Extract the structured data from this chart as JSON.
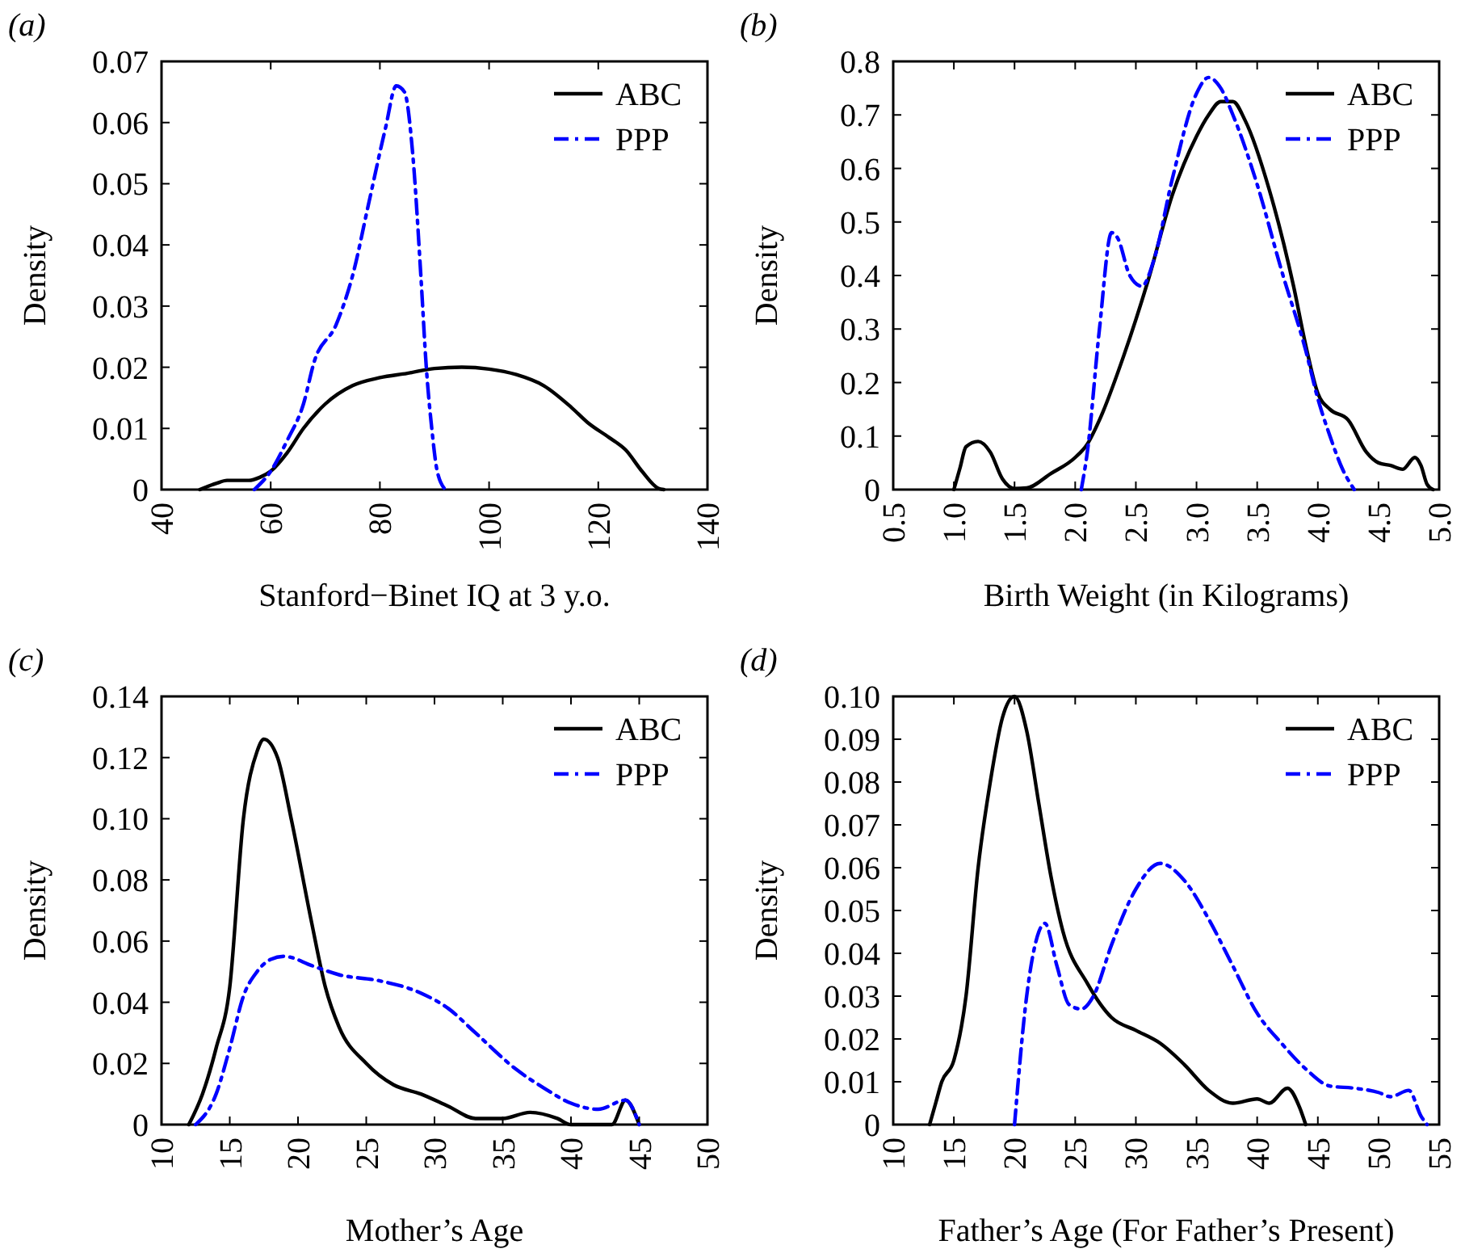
{
  "chart_data": [
    {
      "type": "line",
      "title": "(a)",
      "xlabel": "Stanford−Binet IQ at 3 y.o.",
      "ylabel": "Density",
      "xlim": [
        40,
        140
      ],
      "xticks": [
        40,
        60,
        80,
        100,
        120,
        140
      ],
      "ylim": [
        0,
        0.07
      ],
      "yticks": [
        0,
        0.01,
        0.02,
        0.03,
        0.04,
        0.05,
        0.06,
        0.07
      ],
      "legend": "top right",
      "grid": false,
      "series": [
        {
          "name": "ABC",
          "color": "#000000",
          "line_style": "solid",
          "x": [
            47,
            50,
            52,
            56,
            58,
            60,
            63,
            66,
            70,
            75,
            80,
            85,
            90,
            95,
            100,
            105,
            110,
            115,
            118,
            122,
            125,
            128,
            131,
            132
          ],
          "values": [
            0,
            0.001,
            0.0015,
            0.0015,
            0.002,
            0.003,
            0.006,
            0.01,
            0.014,
            0.017,
            0.0183,
            0.019,
            0.0198,
            0.02,
            0.0197,
            0.0188,
            0.017,
            0.0135,
            0.011,
            0.0085,
            0.0065,
            0.003,
            0.0002,
            0
          ]
        },
        {
          "name": "PPP",
          "color": "#0000ff",
          "line_style": "dashed",
          "x": [
            57,
            60,
            63,
            66,
            68,
            72,
            75,
            78,
            81,
            83,
            84.5,
            86,
            87.5,
            88.5,
            89.5,
            90.5,
            92
          ],
          "values": [
            0,
            0.003,
            0.008,
            0.014,
            0.021,
            0.027,
            0.035,
            0.047,
            0.059,
            0.066,
            0.065,
            0.055,
            0.035,
            0.02,
            0.01,
            0.003,
            0
          ]
        }
      ]
    },
    {
      "type": "line",
      "title": "(b)",
      "xlabel": "Birth Weight (in Kilograms)",
      "ylabel": "Density",
      "xlim": [
        0.5,
        5
      ],
      "xticks": [
        0.5,
        {
          "value": 1,
          "label": "1.0"
        },
        1.5,
        {
          "value": 2,
          "label": "2.0"
        },
        2.5,
        {
          "value": 3,
          "label": "3.0"
        },
        3.5,
        {
          "value": 4,
          "label": "4.0"
        },
        4.5,
        {
          "value": 5,
          "label": "5.0"
        }
      ],
      "ylim": [
        0,
        0.8
      ],
      "yticks": [
        0,
        0.1,
        0.2,
        0.3,
        0.4,
        0.5,
        0.6,
        0.7,
        0.8
      ],
      "legend": "top right",
      "grid": false,
      "series": [
        {
          "name": "ABC",
          "color": "#000000",
          "line_style": "solid",
          "x": [
            1.0,
            1.05,
            1.1,
            1.2,
            1.3,
            1.4,
            1.5,
            1.6,
            1.8,
            2.0,
            2.1,
            2.2,
            2.4,
            2.6,
            2.8,
            3.0,
            3.1,
            3.2,
            3.3,
            3.4,
            3.6,
            3.8,
            3.9,
            4.0,
            4.1,
            4.25,
            4.4,
            4.5,
            4.6,
            4.7,
            4.8,
            4.85,
            4.9,
            4.95
          ],
          "values": [
            0,
            0.04,
            0.08,
            0.09,
            0.07,
            0.02,
            0.002,
            0.003,
            0.03,
            0.06,
            0.085,
            0.13,
            0.25,
            0.39,
            0.55,
            0.66,
            0.7,
            0.725,
            0.725,
            0.69,
            0.56,
            0.38,
            0.27,
            0.18,
            0.15,
            0.13,
            0.07,
            0.05,
            0.045,
            0.038,
            0.06,
            0.045,
            0.01,
            0
          ]
        },
        {
          "name": "PPP",
          "color": "#0000ff",
          "line_style": "dashed",
          "x": [
            2.05,
            2.1,
            2.2,
            2.3,
            2.35,
            2.45,
            2.55,
            2.65,
            2.8,
            3.0,
            3.1,
            3.2,
            3.3,
            3.5,
            3.7,
            3.9,
            4.0,
            4.1,
            4.2,
            4.3
          ],
          "values": [
            0,
            0.07,
            0.3,
            0.48,
            0.47,
            0.4,
            0.38,
            0.43,
            0.58,
            0.74,
            0.77,
            0.75,
            0.7,
            0.57,
            0.41,
            0.26,
            0.17,
            0.1,
            0.04,
            0
          ]
        }
      ]
    },
    {
      "type": "line",
      "title": "(c)",
      "xlabel": "Mother’s Age",
      "ylabel": "Density",
      "xlim": [
        10,
        50
      ],
      "xticks": [
        10,
        15,
        20,
        25,
        30,
        35,
        40,
        45,
        50
      ],
      "ylim": [
        0,
        0.14
      ],
      "yticks": [
        0,
        0.02,
        0.04,
        0.06,
        0.08,
        {
          "value": 0.1,
          "label": "0.10"
        },
        0.12,
        0.14
      ],
      "legend": "top right",
      "grid": false,
      "series": [
        {
          "name": "ABC",
          "color": "#000000",
          "line_style": "solid",
          "x": [
            12,
            13,
            14,
            15,
            16,
            17,
            17.5,
            18.5,
            19.5,
            21,
            22,
            23,
            25,
            27,
            29,
            31,
            33,
            35,
            37,
            39,
            40,
            43,
            44,
            45
          ],
          "values": [
            0,
            0.01,
            0.025,
            0.045,
            0.1,
            0.122,
            0.126,
            0.12,
            0.1,
            0.066,
            0.045,
            0.032,
            0.02,
            0.013,
            0.01,
            0.006,
            0.002,
            0.002,
            0.004,
            0.002,
            0,
            0,
            0.008,
            0
          ]
        },
        {
          "name": "PPP",
          "color": "#0000ff",
          "line_style": "dashed",
          "x": [
            12.5,
            14,
            15,
            16,
            17,
            18,
            19,
            21,
            23,
            26,
            29,
            31,
            33,
            36,
            38,
            40,
            42,
            44,
            45
          ],
          "values": [
            0,
            0.01,
            0.025,
            0.042,
            0.05,
            0.054,
            0.055,
            0.052,
            0.049,
            0.047,
            0.043,
            0.038,
            0.03,
            0.018,
            0.012,
            0.007,
            0.005,
            0.008,
            0
          ]
        }
      ]
    },
    {
      "type": "line",
      "title": "(d)",
      "xlabel": "Father’s Age  (For Father’s Present)",
      "ylabel": "Density",
      "xlim": [
        10,
        55
      ],
      "xticks": [
        10,
        15,
        20,
        25,
        30,
        35,
        40,
        45,
        50,
        55
      ],
      "ylim": [
        0,
        0.1
      ],
      "yticks": [
        0,
        0.01,
        0.02,
        0.03,
        0.04,
        0.05,
        0.06,
        0.07,
        0.08,
        0.09,
        {
          "value": 0.1,
          "label": "0.10"
        }
      ],
      "legend": "top right",
      "grid": false,
      "series": [
        {
          "name": "ABC",
          "color": "#000000",
          "line_style": "solid",
          "x": [
            13,
            13.5,
            14,
            15,
            16,
            17,
            18,
            19,
            20,
            21,
            22,
            23,
            24,
            26,
            28,
            30,
            32,
            34,
            36,
            38,
            40,
            41,
            42.5,
            43.5,
            44
          ],
          "values": [
            0,
            0.005,
            0.01,
            0.015,
            0.03,
            0.06,
            0.08,
            0.095,
            0.1,
            0.092,
            0.075,
            0.058,
            0.045,
            0.033,
            0.025,
            0.022,
            0.019,
            0.014,
            0.008,
            0.005,
            0.006,
            0.005,
            0.0085,
            0.004,
            0
          ]
        },
        {
          "name": "PPP",
          "color": "#0000ff",
          "line_style": "dashed",
          "x": [
            20,
            21,
            22,
            22.5,
            23.5,
            24.5,
            25.5,
            26.5,
            28,
            30,
            32,
            34,
            36,
            38,
            40,
            42,
            44,
            46,
            48,
            50,
            51,
            52.5,
            53.5,
            54
          ],
          "values": [
            0,
            0.03,
            0.045,
            0.047,
            0.037,
            0.028,
            0.027,
            0.03,
            0.042,
            0.055,
            0.061,
            0.057,
            0.048,
            0.037,
            0.026,
            0.019,
            0.013,
            0.009,
            0.0085,
            0.0075,
            0.0065,
            0.008,
            0.002,
            0
          ]
        }
      ]
    }
  ]
}
